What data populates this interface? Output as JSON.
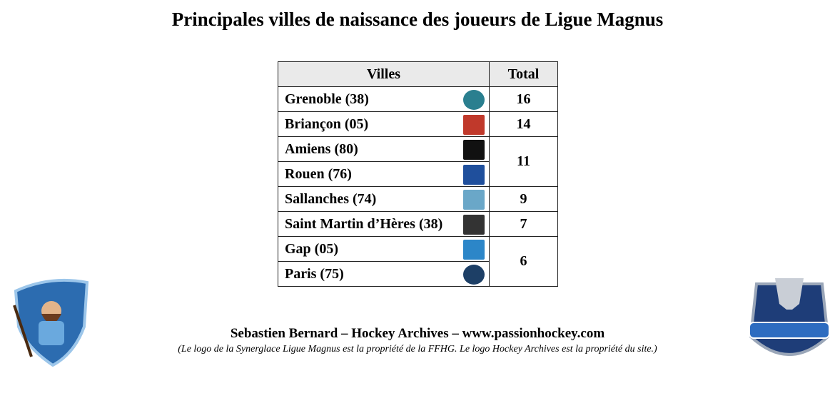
{
  "title": "Principales villes de naissance des joueurs de Ligue Magnus",
  "table": {
    "headers": [
      "Villes",
      "Total"
    ],
    "groups": [
      {
        "cities": [
          "Grenoble (38)"
        ],
        "total": 16
      },
      {
        "cities": [
          "Briançon (05)"
        ],
        "total": 14
      },
      {
        "cities": [
          "Amiens (80)",
          "Rouen (76)"
        ],
        "total": 11
      },
      {
        "cities": [
          "Sallanches (74)"
        ],
        "total": 9
      },
      {
        "cities": [
          "Saint Martin d’Hères (38)"
        ],
        "total": 7
      },
      {
        "cities": [
          "Gap (05)",
          "Paris (75)"
        ],
        "total": 6
      }
    ]
  },
  "footer": {
    "credit": "Sebastien Bernard – Hockey Archives – www.passionhockey.com",
    "note": "(Le logo de la Synerglace Ligue Magnus est la propriété de la FFHG. Le logo Hockey Archives est la propriété du site.)"
  }
}
